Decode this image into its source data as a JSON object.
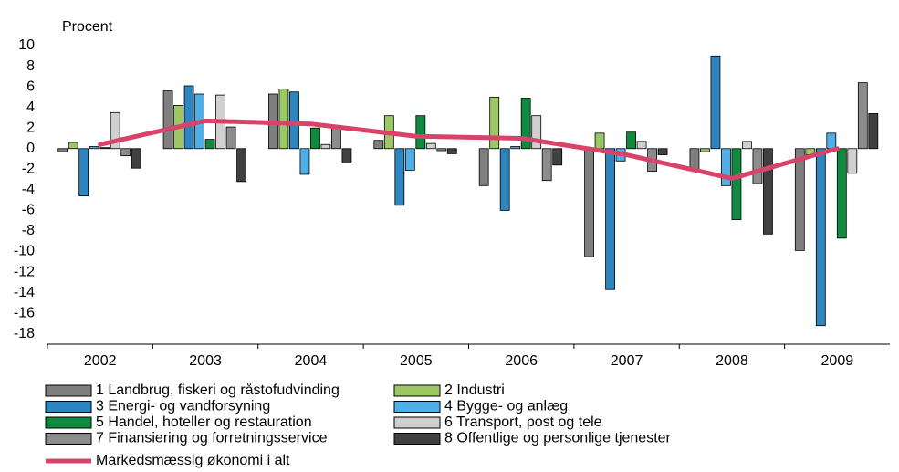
{
  "chart_data": {
    "type": "bar",
    "y_label": "Procent",
    "categories": [
      "2002",
      "2003",
      "2004",
      "2005",
      "2006",
      "2007",
      "2008",
      "2009"
    ],
    "ylim": [
      -19,
      10
    ],
    "yticks": [
      -18,
      -16,
      -14,
      -12,
      -10,
      -8,
      -6,
      -4,
      -2,
      0,
      2,
      4,
      6,
      8,
      10
    ],
    "series": [
      {
        "name": "1 Landbrug, fiskeri og råstofudvinding",
        "color": "#7f7f7f",
        "values": [
          -0.3,
          5.6,
          5.3,
          0.8,
          -3.6,
          -10.5,
          -2.0,
          -9.9
        ]
      },
      {
        "name": "2 Industri",
        "color": "#9bc765",
        "values": [
          0.6,
          4.2,
          5.8,
          3.2,
          5.0,
          1.5,
          -0.3,
          -0.6
        ]
      },
      {
        "name": "3 Energi- og vandforsyning",
        "color": "#2e86c1",
        "values": [
          -4.6,
          6.1,
          5.5,
          -5.5,
          -6.0,
          -13.7,
          9.0,
          -17.2
        ]
      },
      {
        "name": "4 Bygge- og anlæg",
        "color": "#4fb0e8",
        "values": [
          0.2,
          5.3,
          -2.5,
          -2.1,
          0.2,
          -1.2,
          -3.6,
          1.5
        ]
      },
      {
        "name": "5 Handel, hoteller og restauration",
        "color": "#0f8a3f",
        "values": [
          0.1,
          0.9,
          2.0,
          3.2,
          4.9,
          1.6,
          -6.9,
          -8.7
        ]
      },
      {
        "name": "6 Transport, post og tele",
        "color": "#d0d0d0",
        "values": [
          3.5,
          5.2,
          0.4,
          0.5,
          3.2,
          0.7,
          0.7,
          -2.4
        ]
      },
      {
        "name": "7 Finansiering og forretningsservice",
        "color": "#8c8c8c",
        "values": [
          -0.7,
          2.1,
          2.0,
          -0.2,
          -3.1,
          -2.2,
          -3.4,
          6.4
        ]
      },
      {
        "name": "8 Offentlige og personlige tjenester",
        "color": "#404040",
        "values": [
          -1.9,
          -3.2,
          -1.4,
          -0.5,
          -1.6,
          -0.6,
          -8.3,
          3.4
        ]
      },
      {
        "name": "Markedsmæssig økonomi i alt",
        "color": "#d8436a",
        "type": "line",
        "values": [
          0.4,
          2.7,
          2.4,
          1.2,
          1.0,
          -0.6,
          -2.9,
          0.0
        ]
      }
    ]
  }
}
